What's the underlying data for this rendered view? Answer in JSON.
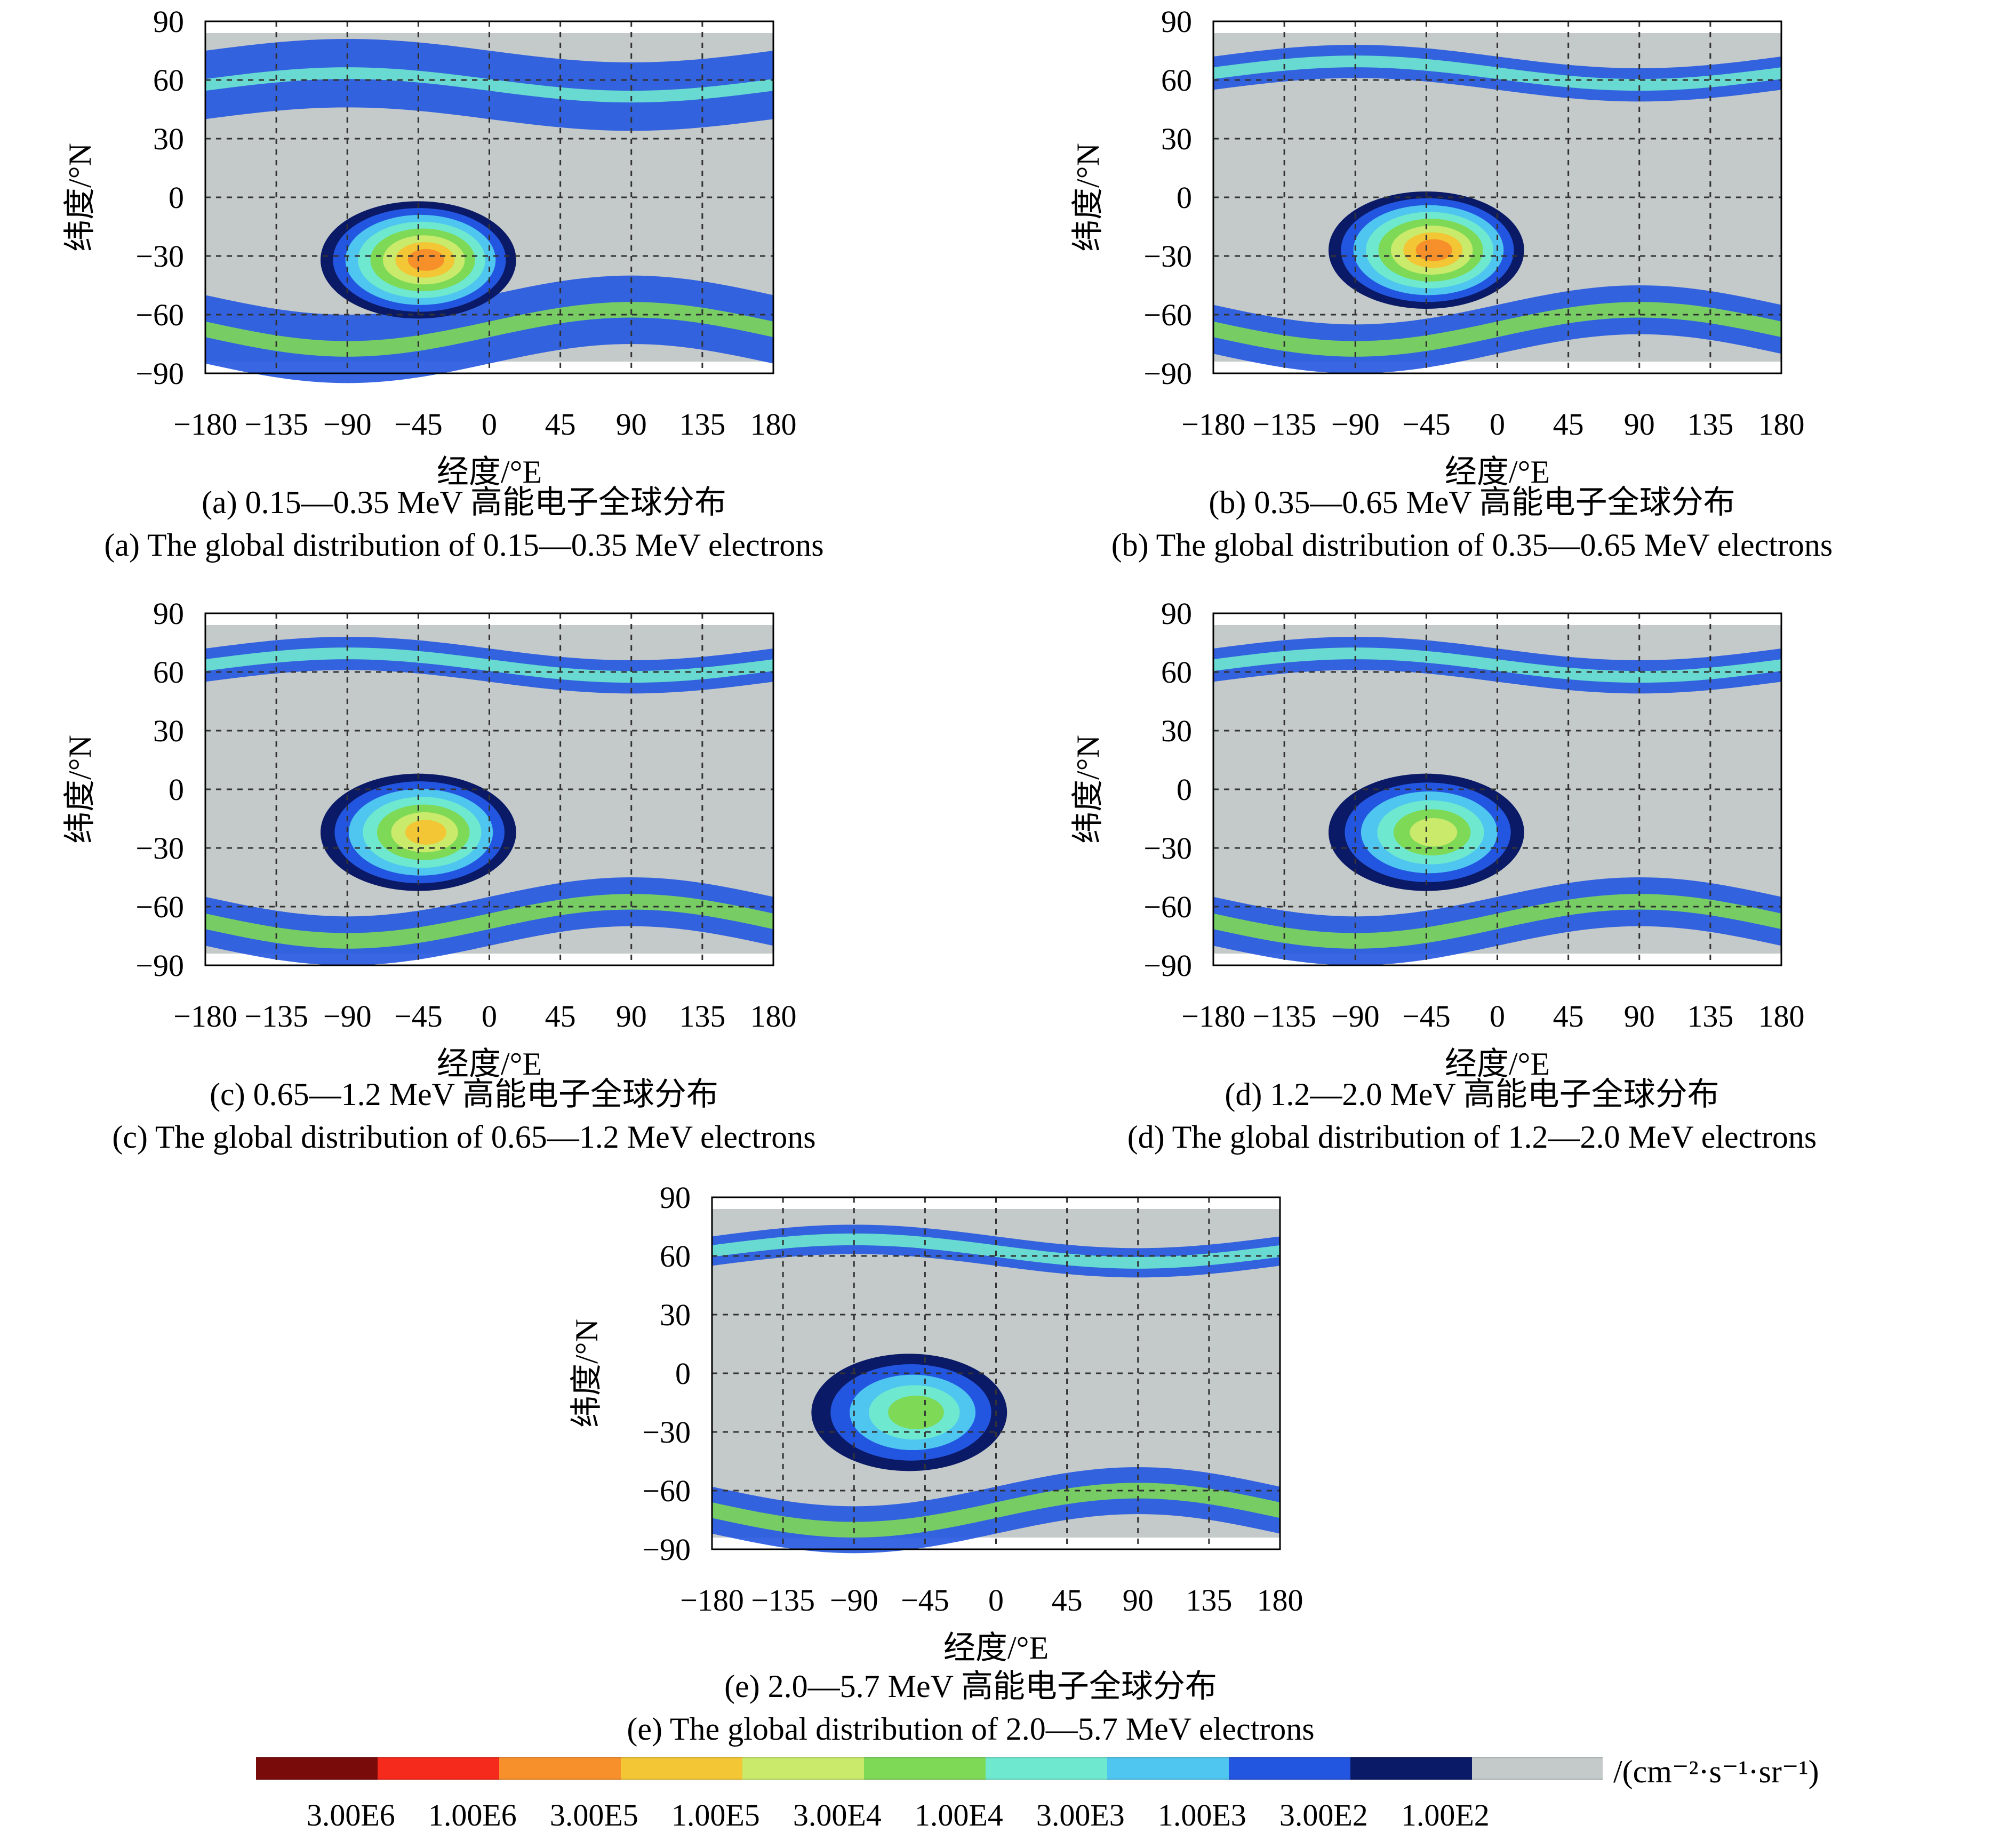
{
  "chart_data": [
    {
      "type": "heatmap",
      "panel": "a",
      "x": [
        -180,
        -135,
        -90,
        -45,
        0,
        45,
        90,
        135,
        180
      ],
      "y": [
        90,
        60,
        30,
        0,
        -30,
        -60,
        -90
      ],
      "xlim": [
        -180,
        180
      ],
      "ylim": [
        -90,
        90
      ],
      "xlabel": "经度/°E",
      "ylabel": "纬度/°N",
      "x_tick_labels": [
        "−180",
        "−135",
        "−90",
        "−45",
        "0",
        "45",
        "90",
        "135",
        "180"
      ],
      "y_tick_labels": [
        "90",
        "60",
        "30",
        "0",
        "−30",
        "−60",
        "−90"
      ],
      "caption_cn": "(a) 0.15—0.35 MeV 高能电子全球分布",
      "caption_en": "(a) The global distribution of 0.15—0.35 MeV electrons",
      "anomaly": {
        "center_lon": -45,
        "center_lat": -32,
        "peak_level": "3.00E5"
      },
      "belts": {
        "north_lat_range": [
          40,
          75
        ],
        "south_lat_range": [
          -85,
          -50
        ]
      },
      "grid": true
    },
    {
      "type": "heatmap",
      "panel": "b",
      "x": [
        -180,
        -135,
        -90,
        -45,
        0,
        45,
        90,
        135,
        180
      ],
      "y": [
        90,
        60,
        30,
        0,
        -30,
        -60,
        -90
      ],
      "xlim": [
        -180,
        180
      ],
      "ylim": [
        -90,
        90
      ],
      "xlabel": "经度/°E",
      "ylabel": "纬度/°N",
      "x_tick_labels": [
        "−180",
        "−135",
        "−90",
        "−45",
        "0",
        "45",
        "90",
        "135",
        "180"
      ],
      "y_tick_labels": [
        "90",
        "60",
        "30",
        "0",
        "−30",
        "−60",
        "−90"
      ],
      "caption_cn": "(b) 0.35—0.65 MeV 高能电子全球分布",
      "caption_en": "(b) The global distribution of 0.35—0.65 MeV electrons",
      "anomaly": {
        "center_lon": -45,
        "center_lat": -27,
        "peak_level": "3.00E5"
      },
      "belts": {
        "north_lat_range": [
          55,
          72
        ],
        "south_lat_range": [
          -80,
          -55
        ]
      },
      "grid": true
    },
    {
      "type": "heatmap",
      "panel": "c",
      "x": [
        -180,
        -135,
        -90,
        -45,
        0,
        45,
        90,
        135,
        180
      ],
      "y": [
        90,
        60,
        30,
        0,
        -30,
        -60,
        -90
      ],
      "xlim": [
        -180,
        180
      ],
      "ylim": [
        -90,
        90
      ],
      "xlabel": "经度/°E",
      "ylabel": "纬度/°N",
      "x_tick_labels": [
        "−180",
        "−135",
        "−90",
        "−45",
        "0",
        "45",
        "90",
        "135",
        "180"
      ],
      "y_tick_labels": [
        "90",
        "60",
        "30",
        "0",
        "−30",
        "−60",
        "−90"
      ],
      "caption_cn": "(c) 0.65—1.2 MeV 高能电子全球分布",
      "caption_en": "(c) The global distribution of 0.65—1.2 MeV electrons",
      "anomaly": {
        "center_lon": -45,
        "center_lat": -22,
        "peak_level": "1.00E5"
      },
      "belts": {
        "north_lat_range": [
          55,
          72
        ],
        "south_lat_range": [
          -80,
          -55
        ]
      },
      "grid": true
    },
    {
      "type": "heatmap",
      "panel": "d",
      "x": [
        -180,
        -135,
        -90,
        -45,
        0,
        45,
        90,
        135,
        180
      ],
      "y": [
        90,
        60,
        30,
        0,
        -30,
        -60,
        -90
      ],
      "xlim": [
        -180,
        180
      ],
      "ylim": [
        -90,
        90
      ],
      "xlabel": "经度/°E",
      "ylabel": "纬度/°N",
      "x_tick_labels": [
        "−180",
        "−135",
        "−90",
        "−45",
        "0",
        "45",
        "90",
        "135",
        "180"
      ],
      "y_tick_labels": [
        "90",
        "60",
        "30",
        "0",
        "−30",
        "−60",
        "−90"
      ],
      "caption_cn": "(d) 1.2—2.0 MeV 高能电子全球分布",
      "caption_en": "(d) The global distribution of 1.2—2.0 MeV electrons",
      "anomaly": {
        "center_lon": -45,
        "center_lat": -22,
        "peak_level": "3.00E4"
      },
      "belts": {
        "north_lat_range": [
          55,
          72
        ],
        "south_lat_range": [
          -80,
          -55
        ]
      },
      "grid": true
    },
    {
      "type": "heatmap",
      "panel": "e",
      "x": [
        -180,
        -135,
        -90,
        -45,
        0,
        45,
        90,
        135,
        180
      ],
      "y": [
        90,
        60,
        30,
        0,
        -30,
        -60,
        -90
      ],
      "xlim": [
        -180,
        180
      ],
      "ylim": [
        -90,
        90
      ],
      "xlabel": "经度/°E",
      "ylabel": "纬度/°N",
      "x_tick_labels": [
        "−180",
        "−135",
        "−90",
        "−45",
        "0",
        "45",
        "90",
        "135",
        "180"
      ],
      "y_tick_labels": [
        "90",
        "60",
        "30",
        "0",
        "−30",
        "−60",
        "−90"
      ],
      "caption_cn": "(e) 2.0—5.7 MeV 高能电子全球分布",
      "caption_en": "(e) The global distribution of 2.0—5.7 MeV electrons",
      "anomaly": {
        "center_lon": -55,
        "center_lat": -20,
        "peak_level": "1.00E4"
      },
      "belts": {
        "north_lat_range": [
          55,
          70
        ],
        "south_lat_range": [
          -82,
          -58
        ]
      },
      "grid": true
    }
  ],
  "colorbar": {
    "unit": "/(cm⁻²·s⁻¹·sr⁻¹)",
    "levels": [
      {
        "label": "3.00E6",
        "color": "#7a0b0b"
      },
      {
        "label": "1.00E6",
        "color": "#f52a1c"
      },
      {
        "label": "3.00E5",
        "color": "#f7902a"
      },
      {
        "label": "1.00E5",
        "color": "#f2c634"
      },
      {
        "label": "3.00E4",
        "color": "#c9ea6a"
      },
      {
        "label": "1.00E4",
        "color": "#7ed957"
      },
      {
        "label": "3.00E3",
        "color": "#6ee8cf"
      },
      {
        "label": "1.00E3",
        "color": "#4fc6f0"
      },
      {
        "label": "3.00E2",
        "color": "#2356e0"
      },
      {
        "label": "1.00E2",
        "color": "#0b1a66"
      }
    ],
    "background_color": "#c4c9c9"
  }
}
